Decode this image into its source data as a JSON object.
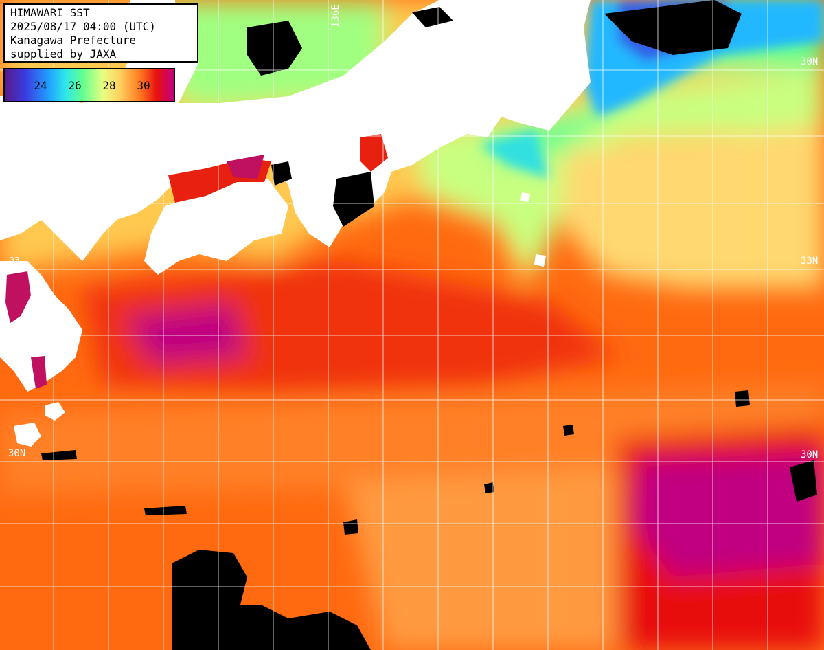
{
  "header": {
    "title": "HIMAWARI SST",
    "datetime": "2025/08/17 04:00 (UTC)",
    "region": "Kanagawa Prefecture",
    "credit": "supplied by JAXA"
  },
  "legend": {
    "ticks": [
      "24",
      "26",
      "28",
      "30"
    ],
    "scale_colors": [
      "#5a1a8c",
      "#3a3ae0",
      "#20a0ff",
      "#30e8e8",
      "#60ff90",
      "#e8ff80",
      "#ffd060",
      "#ff7a20",
      "#e81010",
      "#c00080"
    ]
  },
  "grid": {
    "lon_label": "136E",
    "lat_labels": {
      "north_right": "30N",
      "mid_right": "33N",
      "south_left": "30N",
      "south_right": "30N",
      "west_small": "33"
    }
  },
  "colors": {
    "land": "#ffffff",
    "cloud_mask": "#000000",
    "warm_sea": "#ff6a10",
    "hot_sea": "#e81010",
    "hottest_sea": "#c00080",
    "cool_sea": "#90ff80",
    "cold_sea": "#20c0ff",
    "grid": "#ffffff"
  }
}
